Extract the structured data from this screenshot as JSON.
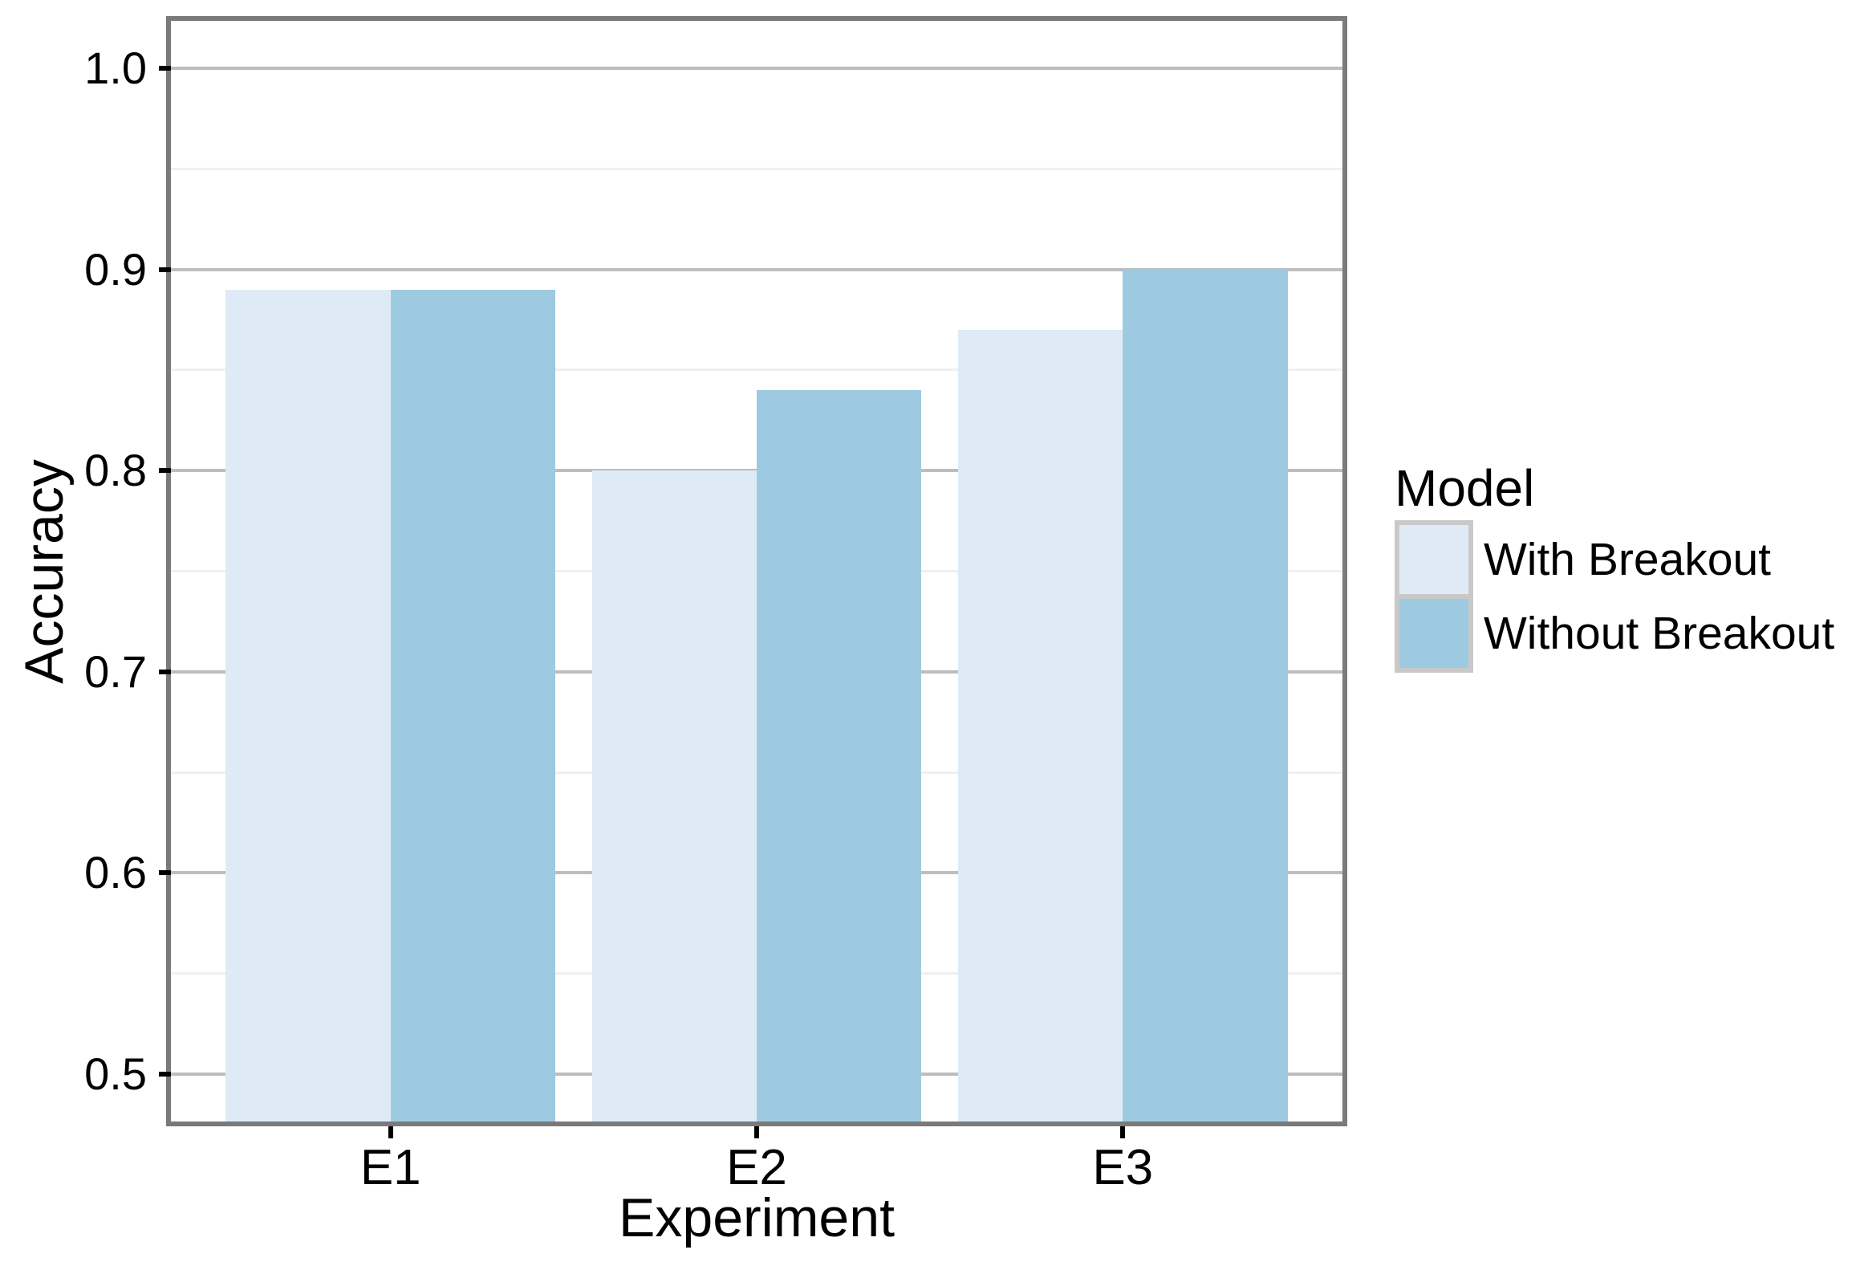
{
  "chart_data": {
    "type": "bar",
    "xlabel": "Experiment",
    "ylabel": "Accuracy",
    "categories": [
      "E1",
      "E2",
      "E3"
    ],
    "series": [
      {
        "name": "With Breakout",
        "color": "#DEEBF7",
        "values": [
          0.89,
          0.8,
          0.87
        ]
      },
      {
        "name": "Without Breakout",
        "color": "#9ECAE1",
        "values": [
          0.89,
          0.84,
          0.9
        ]
      }
    ],
    "legend_title": "Model",
    "legend_position": "right",
    "y_ticks": [
      0.5,
      0.6,
      0.7,
      0.8,
      0.9,
      1.0
    ],
    "y_tick_labels": [
      "0.5",
      "0.6",
      "0.7",
      "0.8",
      "0.9",
      "1.0"
    ],
    "y_minor_ticks": [
      0.55,
      0.65,
      0.75,
      0.85,
      0.95
    ],
    "ylim": [
      0.4765,
      1.0235
    ],
    "x_domain": [
      0.4,
      3.6
    ],
    "bar_group_width": 0.9,
    "grid": "horizontal major and minor gridlines, no vertical gridlines",
    "colors": {
      "grid_major": "#BDBDBD",
      "grid_minor": "#F0F0F0",
      "panel_border": "#7A7A7A",
      "tick": "#000000",
      "text": "#000000",
      "legend_key_border": "#C9C9C9",
      "background": "#FFFFFF"
    }
  }
}
